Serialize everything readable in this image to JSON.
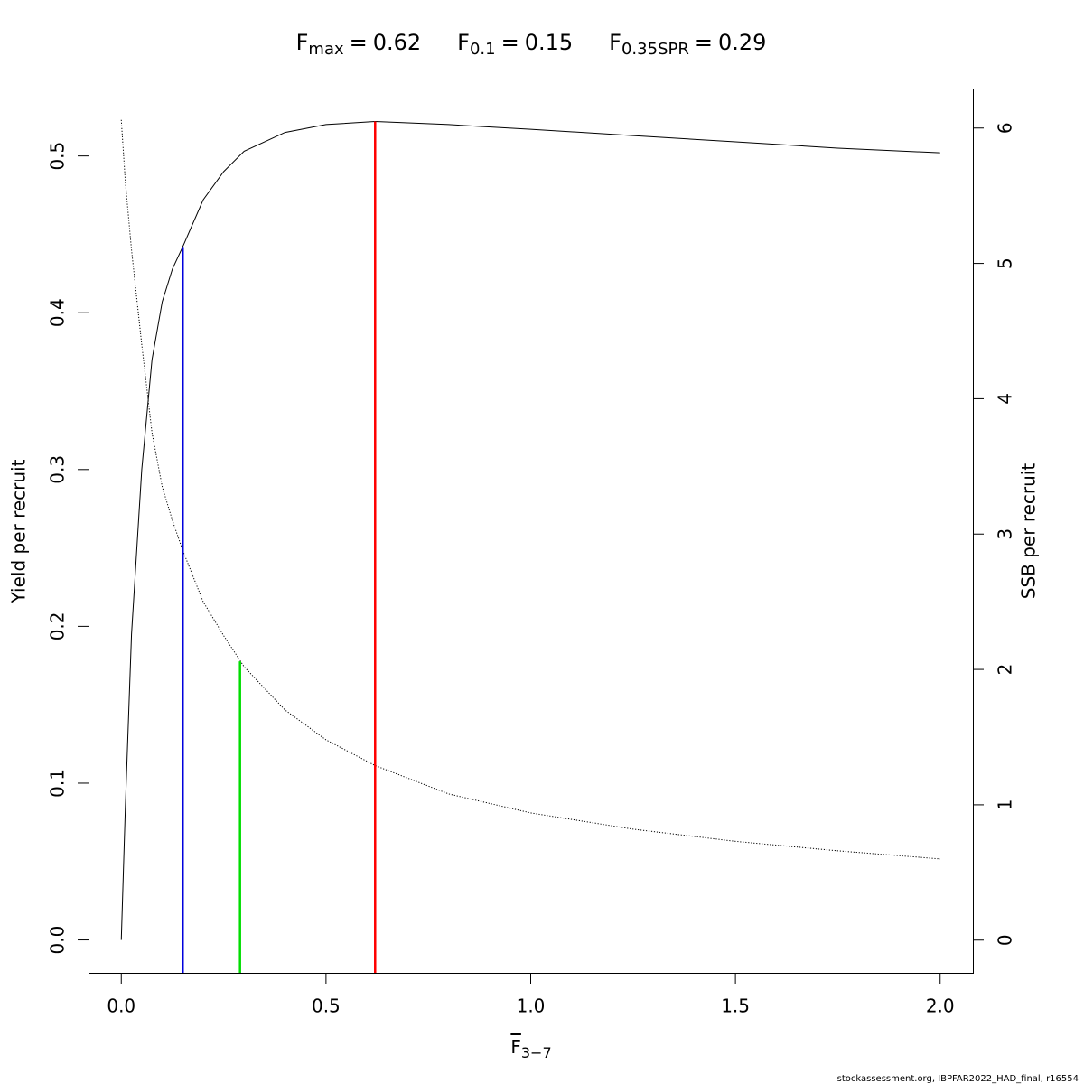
{
  "chart_data": {
    "type": "line",
    "title_parts": [
      {
        "base": "F",
        "sub": "max",
        "sep": "=",
        "value": 0.62,
        "height": 0.522,
        "axis": "y",
        "color": "#ff0000"
      },
      {
        "base": "F",
        "sub": "0.1",
        "sep": "=",
        "value": 0.15,
        "height": 0.442,
        "axis": "y",
        "color": "#0000dd"
      },
      {
        "base": "F",
        "sub": "0.35SPR",
        "sep": "=",
        "value": 0.29,
        "height": 2.06,
        "axis": "y2",
        "color": "#00dd00"
      }
    ],
    "x_label": {
      "base": "F",
      "sub": "3−7"
    },
    "y_label": "Yield per recruit",
    "y2_label": "SSB per recruit",
    "footer": "stockassessment.org, IBPFAR2022_HAD_final, r16554",
    "x": [
      0,
      0.01,
      0.025,
      0.05,
      0.075,
      0.1,
      0.125,
      0.15,
      0.2,
      0.25,
      0.3,
      0.4,
      0.5,
      0.62,
      0.8,
      1.0,
      1.25,
      1.5,
      1.75,
      2.0
    ],
    "series": [
      {
        "name": "Yield per recruit",
        "color": "#000000",
        "style": "solid",
        "axis": "y",
        "values": [
          0,
          0.085,
          0.195,
          0.3,
          0.37,
          0.407,
          0.428,
          0.442,
          0.472,
          0.49,
          0.503,
          0.515,
          0.52,
          0.522,
          0.52,
          0.517,
          0.513,
          0.509,
          0.505,
          0.502
        ]
      },
      {
        "name": "SSB per recruit",
        "color": "#000000",
        "style": "dotted",
        "axis": "y2",
        "values": [
          6.06,
          5.6,
          5.1,
          4.4,
          3.75,
          3.35,
          3.1,
          2.88,
          2.5,
          2.25,
          2.02,
          1.7,
          1.48,
          1.29,
          1.08,
          0.94,
          0.82,
          0.73,
          0.66,
          0.6
        ]
      }
    ],
    "xlim": [
      -0.08,
      2.08
    ],
    "xticks": [
      {
        "value": 0,
        "label": "0.0"
      },
      {
        "value": 0.5,
        "label": "0.5"
      },
      {
        "value": 1,
        "label": "1.0"
      },
      {
        "value": 1.5,
        "label": "1.5"
      },
      {
        "value": 2,
        "label": "2.0"
      }
    ],
    "ylim": [
      -0.021,
      0.543
    ],
    "yticks": [
      {
        "value": 0,
        "label": "0.0"
      },
      {
        "value": 0.1,
        "label": "0.1"
      },
      {
        "value": 0.2,
        "label": "0.2"
      },
      {
        "value": 0.3,
        "label": "0.3"
      },
      {
        "value": 0.4,
        "label": "0.4"
      },
      {
        "value": 0.5,
        "label": "0.5"
      }
    ],
    "y2lim": [
      -0.242,
      6.292
    ],
    "y2ticks": [
      0,
      1,
      2,
      3,
      4,
      5,
      6
    ],
    "grid": false
  }
}
